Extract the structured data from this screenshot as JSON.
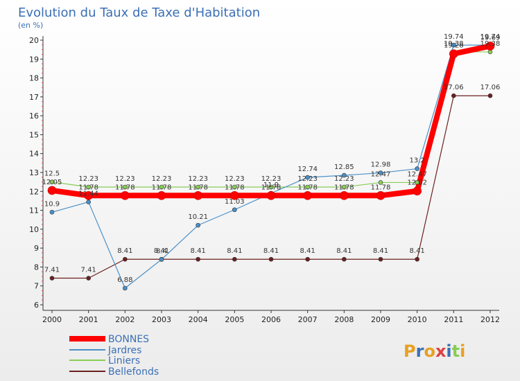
{
  "chart_data": {
    "type": "line",
    "title": "Evolution du Taux de Taxe d'Habitation",
    "subtitle": "(en %)",
    "x": [
      "2000",
      "2001",
      "2002",
      "2003",
      "2004",
      "2005",
      "2006",
      "2007",
      "2008",
      "2009",
      "2010",
      "2011",
      "2012"
    ],
    "ylim": [
      6,
      20
    ],
    "yticks": [
      6,
      7,
      8,
      9,
      10,
      11,
      12,
      13,
      14,
      15,
      16,
      17,
      18,
      19,
      20
    ],
    "grid": false,
    "legend_position": "bottom-left",
    "series": [
      {
        "name": "BONNES",
        "color": "#ff0000",
        "values": [
          12.05,
          11.78,
          11.78,
          11.78,
          11.78,
          11.78,
          11.78,
          11.78,
          11.78,
          11.78,
          12.02,
          19.28,
          19.69
        ],
        "labels": [
          "12.05",
          "11.78",
          "11.78",
          "11.78",
          "11.78",
          "11.78",
          "11.78",
          "11.78",
          "11.78",
          "11.78",
          "12.02",
          "19.28",
          "19.69"
        ]
      },
      {
        "name": "Jardres",
        "color": "#4a90c8",
        "values": [
          10.9,
          11.44,
          6.88,
          8.4,
          10.21,
          11.03,
          11.9,
          12.74,
          12.85,
          12.98,
          13.2,
          19.74,
          19.74
        ],
        "labels": [
          "10.9",
          "11.44",
          "6.88",
          "8.4",
          "10.21",
          "11.03",
          "11.9",
          "12.74",
          "12.85",
          "12.98",
          "13.2",
          "19.74",
          "19.74"
        ]
      },
      {
        "name": "Liniers",
        "color": "#88cc55",
        "values": [
          12.5,
          12.23,
          12.23,
          12.23,
          12.23,
          12.23,
          12.23,
          12.23,
          12.23,
          12.47,
          12.47,
          19.38,
          19.38
        ],
        "labels": [
          "12.5",
          "12.23",
          "12.23",
          "12.23",
          "12.23",
          "12.23",
          "12.23",
          "12.23",
          "12.23",
          "12.47",
          "12.47",
          "19.38",
          "19.38"
        ]
      },
      {
        "name": "Bellefonds",
        "color": "#6b2020",
        "values": [
          7.41,
          7.41,
          8.41,
          8.41,
          8.41,
          8.41,
          8.41,
          8.41,
          8.41,
          8.41,
          8.41,
          17.06,
          17.06
        ],
        "labels": [
          "7.41",
          "7.41",
          "8.41",
          "8.41",
          "8.41",
          "8.41",
          "8.41",
          "8.41",
          "8.41",
          "8.41",
          "8.41",
          "17.06",
          "17.06"
        ]
      }
    ]
  },
  "logo": {
    "text": "Proxiti"
  }
}
